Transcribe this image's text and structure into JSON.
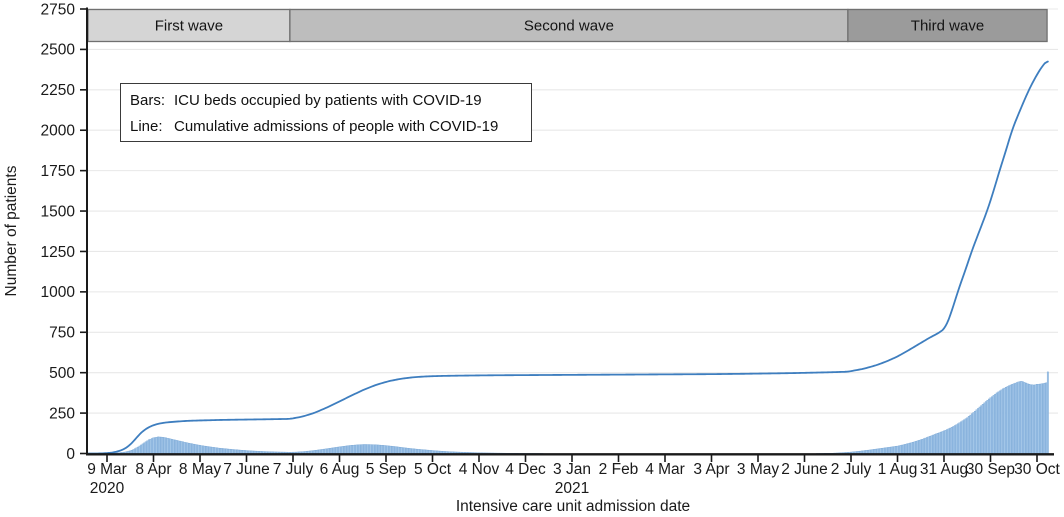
{
  "legend": {
    "rows": [
      {
        "key": "Bars:",
        "text": "ICU beds occupied by patients with COVID-19"
      },
      {
        "key": "Line:",
        "text": "Cumulative admissions of people with COVID-19"
      }
    ]
  },
  "chart_data": {
    "type": "bar+line",
    "title": "",
    "xlabel": "Intensive care unit admission date",
    "ylabel": "Number of patients",
    "ylim": [
      0,
      2750
    ],
    "y_ticks": [
      0,
      250,
      500,
      750,
      1000,
      1250,
      1500,
      1750,
      2000,
      2250,
      2500,
      2750
    ],
    "grid": "horizontal only",
    "x_axis_note": "day 0 = 9 Mar 2020, ticks every 30 days",
    "x_range_days": [
      -12.3,
      612
    ],
    "x_ticks": [
      {
        "day": 0,
        "label": "9 Mar",
        "sublabel": "2020"
      },
      {
        "day": 30,
        "label": "8 Apr"
      },
      {
        "day": 60,
        "label": "8 May"
      },
      {
        "day": 90,
        "label": "7 June"
      },
      {
        "day": 120,
        "label": "7 July"
      },
      {
        "day": 150,
        "label": "6 Aug"
      },
      {
        "day": 180,
        "label": "5 Sep"
      },
      {
        "day": 210,
        "label": "5 Oct"
      },
      {
        "day": 240,
        "label": "4 Nov"
      },
      {
        "day": 270,
        "label": "4 Dec"
      },
      {
        "day": 300,
        "label": "3 Jan",
        "sublabel": "2021"
      },
      {
        "day": 330,
        "label": "2 Feb"
      },
      {
        "day": 360,
        "label": "4 Mar"
      },
      {
        "day": 390,
        "label": "3 Apr"
      },
      {
        "day": 420,
        "label": "3 May"
      },
      {
        "day": 450,
        "label": "2 June"
      },
      {
        "day": 480,
        "label": "2 July"
      },
      {
        "day": 510,
        "label": "1 Aug"
      },
      {
        "day": 540,
        "label": "31 Aug"
      },
      {
        "day": 570,
        "label": "30 Sep"
      },
      {
        "day": 600,
        "label": "30 Oct"
      }
    ],
    "wave_bands": [
      {
        "label": "First wave",
        "start_day": -12.3,
        "end_day": 118,
        "fill": "#d5d5d5"
      },
      {
        "label": "Second wave",
        "start_day": 118,
        "end_day": 478,
        "fill": "#bdbdbd"
      },
      {
        "label": "Third wave",
        "start_day": 478,
        "end_day": 606.5,
        "fill": "#9b9b9b"
      }
    ],
    "series": [
      {
        "name": "ICU beds occupied by patients with COVID-19",
        "render": "bar",
        "fill": "#a3c6e8",
        "edge": "#6fa0d2",
        "points_day_value": [
          [
            -6,
            0
          ],
          [
            -4,
            1
          ],
          [
            0,
            1
          ],
          [
            4,
            2
          ],
          [
            8,
            5
          ],
          [
            12,
            10
          ],
          [
            16,
            20
          ],
          [
            20,
            40
          ],
          [
            24,
            66
          ],
          [
            27,
            85
          ],
          [
            30,
            97
          ],
          [
            33,
            103
          ],
          [
            36,
            101
          ],
          [
            39,
            95
          ],
          [
            43,
            86
          ],
          [
            47,
            77
          ],
          [
            51,
            68
          ],
          [
            56,
            58
          ],
          [
            61,
            49
          ],
          [
            66,
            42
          ],
          [
            72,
            34
          ],
          [
            78,
            28
          ],
          [
            85,
            22
          ],
          [
            92,
            17
          ],
          [
            100,
            13
          ],
          [
            108,
            10
          ],
          [
            114,
            9
          ],
          [
            118,
            8
          ],
          [
            122,
            9
          ],
          [
            127,
            12
          ],
          [
            132,
            17
          ],
          [
            137,
            23
          ],
          [
            142,
            30
          ],
          [
            147,
            37
          ],
          [
            152,
            44
          ],
          [
            157,
            50
          ],
          [
            162,
            54
          ],
          [
            166,
            56
          ],
          [
            171,
            55
          ],
          [
            175,
            53
          ],
          [
            180,
            49
          ],
          [
            185,
            44
          ],
          [
            190,
            38
          ],
          [
            195,
            32
          ],
          [
            200,
            27
          ],
          [
            206,
            22
          ],
          [
            212,
            17
          ],
          [
            218,
            13
          ],
          [
            224,
            10
          ],
          [
            230,
            8
          ],
          [
            236,
            6
          ],
          [
            243,
            4
          ],
          [
            250,
            3
          ],
          [
            258,
            2
          ],
          [
            266,
            1
          ],
          [
            275,
            1
          ],
          [
            285,
            0
          ],
          [
            455,
            0
          ],
          [
            462,
            1
          ],
          [
            468,
            2
          ],
          [
            474,
            5
          ],
          [
            480,
            9
          ],
          [
            486,
            15
          ],
          [
            492,
            22
          ],
          [
            498,
            30
          ],
          [
            504,
            38
          ],
          [
            510,
            46
          ],
          [
            515,
            57
          ],
          [
            520,
            70
          ],
          [
            525,
            85
          ],
          [
            530,
            103
          ],
          [
            535,
            122
          ],
          [
            540,
            140
          ],
          [
            545,
            162
          ],
          [
            550,
            190
          ],
          [
            555,
            222
          ],
          [
            560,
            262
          ],
          [
            565,
            305
          ],
          [
            568,
            330
          ],
          [
            571,
            352
          ],
          [
            574,
            375
          ],
          [
            578,
            400
          ],
          [
            582,
            420
          ],
          [
            585,
            432
          ],
          [
            588,
            443
          ],
          [
            590,
            447
          ],
          [
            592,
            440
          ],
          [
            594,
            432
          ],
          [
            596,
            426
          ],
          [
            598,
            424
          ],
          [
            600,
            428
          ],
          [
            602,
            430
          ],
          [
            604,
            433
          ],
          [
            606,
            438
          ],
          [
            607,
            505
          ]
        ]
      },
      {
        "name": "Cumulative admissions of people with COVID-19",
        "render": "line",
        "color": "#3e7ebf",
        "points_day_value": [
          [
            -12,
            0
          ],
          [
            -6,
            0
          ],
          [
            0,
            2
          ],
          [
            5,
            8
          ],
          [
            10,
            22
          ],
          [
            14,
            45
          ],
          [
            18,
            85
          ],
          [
            21,
            120
          ],
          [
            24,
            145
          ],
          [
            27,
            163
          ],
          [
            30,
            176
          ],
          [
            34,
            186
          ],
          [
            38,
            192
          ],
          [
            44,
            197
          ],
          [
            52,
            202
          ],
          [
            62,
            205
          ],
          [
            75,
            208
          ],
          [
            90,
            210
          ],
          [
            105,
            212
          ],
          [
            118,
            214
          ],
          [
            126,
            228
          ],
          [
            134,
            252
          ],
          [
            142,
            285
          ],
          [
            150,
            322
          ],
          [
            158,
            360
          ],
          [
            166,
            396
          ],
          [
            174,
            426
          ],
          [
            182,
            448
          ],
          [
            190,
            463
          ],
          [
            198,
            472
          ],
          [
            206,
            477
          ],
          [
            216,
            480
          ],
          [
            230,
            482
          ],
          [
            250,
            484
          ],
          [
            270,
            485
          ],
          [
            290,
            486
          ],
          [
            310,
            487
          ],
          [
            330,
            488
          ],
          [
            350,
            489
          ],
          [
            370,
            490
          ],
          [
            390,
            491
          ],
          [
            410,
            493
          ],
          [
            425,
            495
          ],
          [
            440,
            497
          ],
          [
            455,
            500
          ],
          [
            468,
            503
          ],
          [
            478,
            506
          ],
          [
            488,
            524
          ],
          [
            496,
            545
          ],
          [
            503,
            570
          ],
          [
            510,
            600
          ],
          [
            517,
            638
          ],
          [
            524,
            678
          ],
          [
            531,
            718
          ],
          [
            537,
            748
          ],
          [
            541,
            778
          ],
          [
            545,
            880
          ],
          [
            549,
            1005
          ],
          [
            554,
            1140
          ],
          [
            558,
            1255
          ],
          [
            563,
            1380
          ],
          [
            568,
            1505
          ],
          [
            572,
            1625
          ],
          [
            576,
            1755
          ],
          [
            580,
            1875
          ],
          [
            584,
            2005
          ],
          [
            590,
            2145
          ],
          [
            595,
            2255
          ],
          [
            600,
            2345
          ],
          [
            604,
            2405
          ],
          [
            607,
            2435
          ]
        ]
      }
    ]
  },
  "colors": {
    "plot_background": "#ffffff",
    "gridline": "#e8e8e8",
    "axis": "#1a1a1a",
    "text": "#1a1a1a",
    "band_border": "#707070"
  }
}
